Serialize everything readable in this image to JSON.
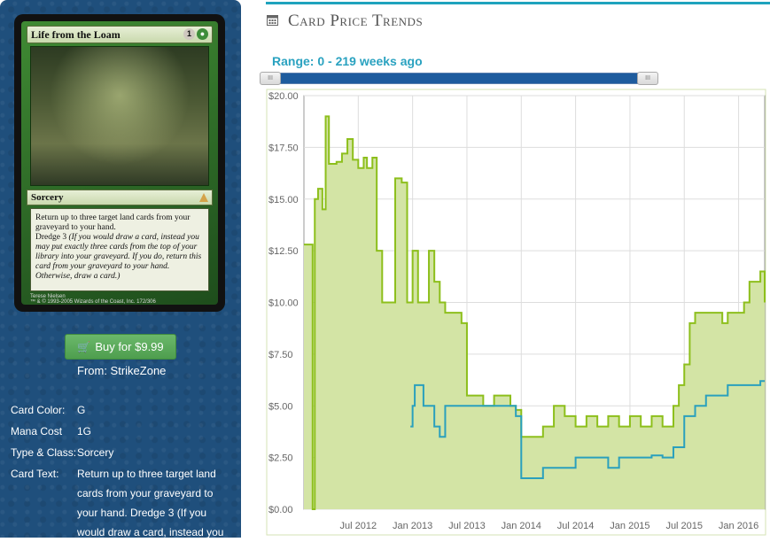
{
  "card": {
    "name": "Life from the Loam",
    "mana_generic": "1",
    "type_line": "Sorcery",
    "rules_text": "Return up to three target land cards from your graveyard to your hand.",
    "dredge_label": "Dredge 3",
    "dredge_reminder": "(If you would draw a card, instead you may put exactly three cards from the top of your library into your graveyard. If you do, return this card from your graveyard to your hand. Otherwise, draw a card.)",
    "artist": "Terese Nielsen",
    "footer_small": "™ & © 1993-2005 Wizards of the Coast, Inc. 172/306"
  },
  "buy": {
    "label": "Buy for $9.99",
    "from": "From: StrikeZone"
  },
  "attributes": [
    {
      "key": "Card Color:",
      "value": "G"
    },
    {
      "key": "Mana Cost",
      "value": "1G"
    },
    {
      "key": "Type & Class:",
      "value": "Sorcery"
    },
    {
      "key": "Card Text:",
      "value": "Return up to three target land cards from your graveyard to your hand. Dredge 3 (If you would draw a card, instead you"
    }
  ],
  "section": {
    "title": "Card Price Trends",
    "range_label": "Range: 0 - 219 weeks ago",
    "slider_handle_glyph": "III"
  },
  "colors": {
    "accent": "#1fa3bd",
    "green_line": "#8dbf1c",
    "green_fill": "#d3e4a5",
    "blue_line": "#2aa0bd"
  },
  "chart_data": {
    "type": "line",
    "ylim": [
      0,
      20
    ],
    "y_ticks": [
      "$0.00",
      "$2.50",
      "$5.00",
      "$7.50",
      "$10.00",
      "$12.50",
      "$15.00",
      "$17.50",
      "$20.00"
    ],
    "x_ticks": [
      "Jul 2012",
      "Jan 2013",
      "Jul 2013",
      "Jan 2014",
      "Jul 2014",
      "Jan 2015",
      "Jul 2015",
      "Jan 2016"
    ],
    "series": [
      {
        "values": [
          [
            2012.0,
            12.8
          ],
          [
            2012.08,
            0.0
          ],
          [
            2012.1,
            15.0
          ],
          [
            2012.13,
            15.5
          ],
          [
            2012.17,
            14.5
          ],
          [
            2012.2,
            19.0
          ],
          [
            2012.23,
            16.7
          ],
          [
            2012.3,
            16.8
          ],
          [
            2012.35,
            17.2
          ],
          [
            2012.4,
            17.9
          ],
          [
            2012.45,
            16.9
          ],
          [
            2012.5,
            16.5
          ],
          [
            2012.55,
            17.0
          ],
          [
            2012.58,
            16.5
          ],
          [
            2012.63,
            17.0
          ],
          [
            2012.67,
            12.5
          ],
          [
            2012.72,
            10.0
          ],
          [
            2012.8,
            10.0
          ],
          [
            2012.84,
            16.0
          ],
          [
            2012.9,
            15.8
          ],
          [
            2012.95,
            10.0
          ],
          [
            2013.0,
            12.5
          ],
          [
            2013.05,
            10.0
          ],
          [
            2013.15,
            12.5
          ],
          [
            2013.2,
            11.0
          ],
          [
            2013.25,
            10.0
          ],
          [
            2013.3,
            9.5
          ],
          [
            2013.4,
            9.5
          ],
          [
            2013.45,
            9.0
          ],
          [
            2013.5,
            5.5
          ],
          [
            2013.6,
            5.5
          ],
          [
            2013.65,
            5.0
          ],
          [
            2013.75,
            5.5
          ],
          [
            2013.9,
            5.0
          ],
          [
            2013.95,
            4.8
          ],
          [
            2014.0,
            3.5
          ],
          [
            2014.1,
            3.5
          ],
          [
            2014.2,
            4.0
          ],
          [
            2014.3,
            5.0
          ],
          [
            2014.4,
            4.5
          ],
          [
            2014.5,
            4.0
          ],
          [
            2014.6,
            4.5
          ],
          [
            2014.7,
            4.0
          ],
          [
            2014.8,
            4.5
          ],
          [
            2014.9,
            4.0
          ],
          [
            2015.0,
            4.5
          ],
          [
            2015.1,
            4.0
          ],
          [
            2015.2,
            4.5
          ],
          [
            2015.3,
            4.0
          ],
          [
            2015.4,
            5.0
          ],
          [
            2015.45,
            6.0
          ],
          [
            2015.5,
            7.0
          ],
          [
            2015.55,
            9.0
          ],
          [
            2015.6,
            9.5
          ],
          [
            2015.7,
            9.5
          ],
          [
            2015.8,
            9.5
          ],
          [
            2015.85,
            9.0
          ],
          [
            2015.9,
            9.5
          ],
          [
            2016.0,
            9.5
          ],
          [
            2016.05,
            10.0
          ],
          [
            2016.1,
            11.0
          ],
          [
            2016.15,
            11.0
          ],
          [
            2016.2,
            11.5
          ],
          [
            2016.24,
            10.0
          ]
        ]
      },
      {
        "values": [
          [
            2012.98,
            4.0
          ],
          [
            2013.0,
            5.0
          ],
          [
            2013.02,
            6.0
          ],
          [
            2013.06,
            6.0
          ],
          [
            2013.1,
            5.0
          ],
          [
            2013.2,
            4.0
          ],
          [
            2013.25,
            3.5
          ],
          [
            2013.3,
            5.0
          ],
          [
            2013.45,
            5.0
          ],
          [
            2013.6,
            5.0
          ],
          [
            2013.8,
            5.0
          ],
          [
            2013.95,
            4.5
          ],
          [
            2014.0,
            1.5
          ],
          [
            2014.1,
            1.5
          ],
          [
            2014.2,
            2.0
          ],
          [
            2014.3,
            2.0
          ],
          [
            2014.4,
            2.0
          ],
          [
            2014.5,
            2.5
          ],
          [
            2014.6,
            2.5
          ],
          [
            2014.7,
            2.5
          ],
          [
            2014.8,
            2.0
          ],
          [
            2014.9,
            2.5
          ],
          [
            2015.0,
            2.5
          ],
          [
            2015.1,
            2.5
          ],
          [
            2015.2,
            2.6
          ],
          [
            2015.3,
            2.5
          ],
          [
            2015.4,
            3.0
          ],
          [
            2015.5,
            4.5
          ],
          [
            2015.6,
            5.0
          ],
          [
            2015.7,
            5.5
          ],
          [
            2015.8,
            5.5
          ],
          [
            2015.9,
            6.0
          ],
          [
            2016.0,
            6.0
          ],
          [
            2016.1,
            6.0
          ],
          [
            2016.2,
            6.2
          ],
          [
            2016.24,
            6.2
          ]
        ]
      }
    ]
  }
}
